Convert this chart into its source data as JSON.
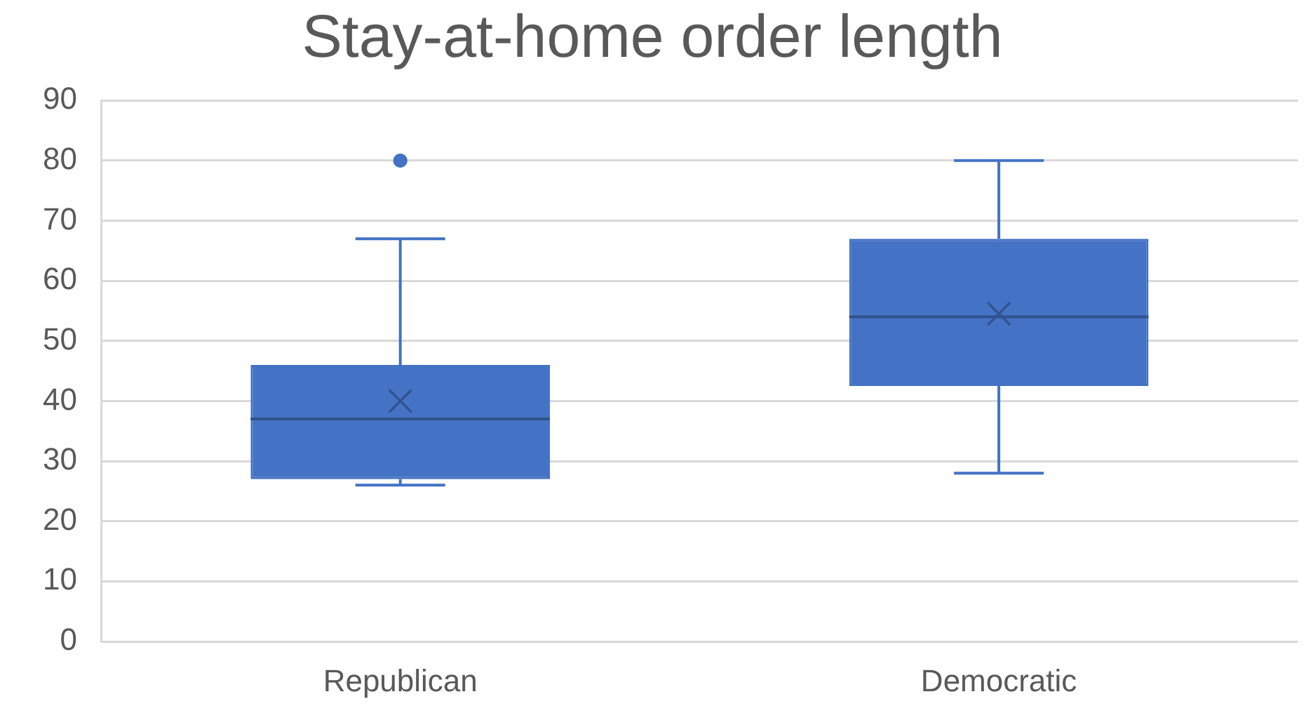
{
  "chart_data": {
    "type": "box",
    "title": "Stay-at-home order length",
    "categories": [
      "Republican",
      "Democratic"
    ],
    "boxes": [
      {
        "low": 26,
        "q1": 27,
        "median": 37,
        "q3": 46,
        "high": 67,
        "mean": 40,
        "outliers": [
          80
        ]
      },
      {
        "low": 28,
        "q1": 42.5,
        "median": 54,
        "q3": 67,
        "high": 80,
        "mean": 54.5
      }
    ],
    "color": "#4472c4",
    "ylim": [
      0,
      90
    ],
    "yticks": [
      0,
      10,
      20,
      30,
      40,
      50,
      60,
      70,
      80,
      90
    ],
    "grid": "y"
  }
}
